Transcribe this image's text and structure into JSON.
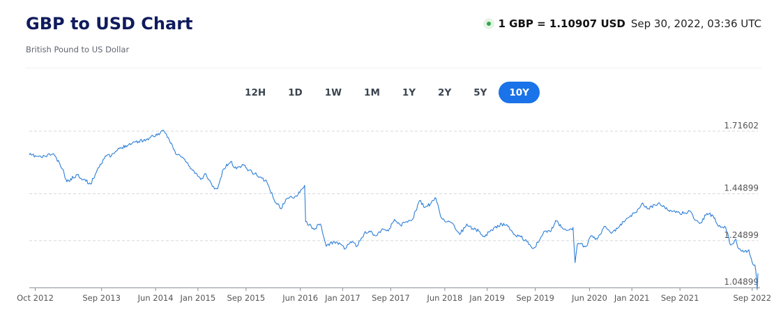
{
  "header": {
    "title": "GBP to USD Chart",
    "subtitle": "British Pound to US Dollar",
    "rate": "1 GBP = 1.10907 USD",
    "timestamp": "Sep 30, 2022, 03:36 UTC"
  },
  "ranges": {
    "items": [
      "12H",
      "1D",
      "1W",
      "1M",
      "1Y",
      "2Y",
      "5Y",
      "10Y"
    ],
    "active": "10Y"
  },
  "colors": {
    "line": "#2c7ed6",
    "active_range": "#1a73e8",
    "title": "#0f1b5c",
    "live": "#2ea84a"
  },
  "chart_data": {
    "type": "line",
    "title": "",
    "xlabel": "",
    "ylabel": "",
    "ylim": [
      1.04899,
      1.71602
    ],
    "yticks": [
      {
        "value": 1.71602,
        "label": "1.71602"
      },
      {
        "value": 1.44899,
        "label": "1.44899"
      },
      {
        "value": 1.24899,
        "label": "1.24899"
      },
      {
        "value": 1.04899,
        "label": "1.04899"
      }
    ],
    "xlim": [
      "2012-09-01",
      "2022-09-30"
    ],
    "xticks": [
      {
        "date": "2012-10-01",
        "label": "Oct 2012"
      },
      {
        "date": "2013-09-01",
        "label": "Sep 2013"
      },
      {
        "date": "2014-06-01",
        "label": "Jun 2014"
      },
      {
        "date": "2015-01-01",
        "label": "Jan 2015"
      },
      {
        "date": "2015-09-01",
        "label": "Sep 2015"
      },
      {
        "date": "2016-06-01",
        "label": "Jun 2016"
      },
      {
        "date": "2017-01-01",
        "label": "Jan 2017"
      },
      {
        "date": "2017-09-01",
        "label": "Sep 2017"
      },
      {
        "date": "2018-06-01",
        "label": "Jun 2018"
      },
      {
        "date": "2019-01-01",
        "label": "Jan 2019"
      },
      {
        "date": "2019-09-01",
        "label": "Sep 2019"
      },
      {
        "date": "2020-06-01",
        "label": "Jun 2020"
      },
      {
        "date": "2021-01-01",
        "label": "Jan 2021"
      },
      {
        "date": "2021-09-01",
        "label": "Sep 2021"
      },
      {
        "date": "2022-09-01",
        "label": "Sep 2022"
      }
    ],
    "grid": "horizontal dashed",
    "series": [
      {
        "points": [
          [
            "2012-09-01",
            1.615
          ],
          [
            "2012-11-01",
            1.605
          ],
          [
            "2013-01-01",
            1.62
          ],
          [
            "2013-02-15",
            1.555
          ],
          [
            "2013-03-10",
            1.5
          ],
          [
            "2013-05-01",
            1.53
          ],
          [
            "2013-07-08",
            1.49
          ],
          [
            "2013-08-15",
            1.56
          ],
          [
            "2013-09-20",
            1.61
          ],
          [
            "2013-10-20",
            1.61
          ],
          [
            "2013-11-20",
            1.635
          ],
          [
            "2014-01-01",
            1.655
          ],
          [
            "2014-02-15",
            1.67
          ],
          [
            "2014-04-15",
            1.68
          ],
          [
            "2014-05-20",
            1.695
          ],
          [
            "2014-07-15",
            1.715
          ],
          [
            "2014-08-20",
            1.665
          ],
          [
            "2014-09-10",
            1.62
          ],
          [
            "2014-10-15",
            1.605
          ],
          [
            "2014-11-20",
            1.565
          ],
          [
            "2015-01-15",
            1.51
          ],
          [
            "2015-02-10",
            1.535
          ],
          [
            "2015-03-15",
            1.48
          ],
          [
            "2015-04-10",
            1.47
          ],
          [
            "2015-05-10",
            1.555
          ],
          [
            "2015-06-15",
            1.585
          ],
          [
            "2015-07-15",
            1.555
          ],
          [
            "2015-08-15",
            1.575
          ],
          [
            "2015-09-15",
            1.55
          ],
          [
            "2015-10-15",
            1.535
          ],
          [
            "2015-11-20",
            1.515
          ],
          [
            "2015-12-15",
            1.5
          ],
          [
            "2016-01-20",
            1.425
          ],
          [
            "2016-02-25",
            1.385
          ],
          [
            "2016-03-20",
            1.425
          ],
          [
            "2016-05-10",
            1.44
          ],
          [
            "2016-06-23",
            1.485
          ],
          [
            "2016-06-28",
            1.33
          ],
          [
            "2016-07-15",
            1.315
          ],
          [
            "2016-08-15",
            1.3
          ],
          [
            "2016-09-10",
            1.32
          ],
          [
            "2016-10-10",
            1.225
          ],
          [
            "2016-11-20",
            1.245
          ],
          [
            "2016-12-20",
            1.235
          ],
          [
            "2017-01-15",
            1.215
          ],
          [
            "2017-02-10",
            1.245
          ],
          [
            "2017-03-15",
            1.225
          ],
          [
            "2017-04-20",
            1.28
          ],
          [
            "2017-05-15",
            1.29
          ],
          [
            "2017-06-20",
            1.27
          ],
          [
            "2017-07-20",
            1.3
          ],
          [
            "2017-08-20",
            1.29
          ],
          [
            "2017-09-20",
            1.34
          ],
          [
            "2017-10-20",
            1.315
          ],
          [
            "2017-11-20",
            1.33
          ],
          [
            "2017-12-20",
            1.34
          ],
          [
            "2018-01-25",
            1.42
          ],
          [
            "2018-02-20",
            1.39
          ],
          [
            "2018-03-20",
            1.405
          ],
          [
            "2018-04-17",
            1.43
          ],
          [
            "2018-05-15",
            1.345
          ],
          [
            "2018-06-15",
            1.33
          ],
          [
            "2018-07-20",
            1.31
          ],
          [
            "2018-08-15",
            1.275
          ],
          [
            "2018-09-20",
            1.32
          ],
          [
            "2018-10-20",
            1.3
          ],
          [
            "2018-11-20",
            1.29
          ],
          [
            "2018-12-20",
            1.265
          ],
          [
            "2019-01-20",
            1.295
          ],
          [
            "2019-03-15",
            1.32
          ],
          [
            "2019-04-15",
            1.31
          ],
          [
            "2019-05-20",
            1.275
          ],
          [
            "2019-06-20",
            1.265
          ],
          [
            "2019-07-20",
            1.245
          ],
          [
            "2019-08-20",
            1.215
          ],
          [
            "2019-09-20",
            1.245
          ],
          [
            "2019-10-20",
            1.29
          ],
          [
            "2019-11-20",
            1.29
          ],
          [
            "2019-12-13",
            1.335
          ],
          [
            "2020-01-15",
            1.305
          ],
          [
            "2020-02-20",
            1.295
          ],
          [
            "2020-03-10",
            1.305
          ],
          [
            "2020-03-20",
            1.155
          ],
          [
            "2020-04-01",
            1.235
          ],
          [
            "2020-05-15",
            1.225
          ],
          [
            "2020-06-10",
            1.27
          ],
          [
            "2020-07-10",
            1.255
          ],
          [
            "2020-08-15",
            1.31
          ],
          [
            "2020-09-20",
            1.28
          ],
          [
            "2020-10-20",
            1.3
          ],
          [
            "2020-11-20",
            1.33
          ],
          [
            "2020-12-20",
            1.35
          ],
          [
            "2021-01-20",
            1.37
          ],
          [
            "2021-02-24",
            1.41
          ],
          [
            "2021-03-20",
            1.385
          ],
          [
            "2021-05-20",
            1.41
          ],
          [
            "2021-06-20",
            1.385
          ],
          [
            "2021-07-20",
            1.375
          ],
          [
            "2021-08-20",
            1.37
          ],
          [
            "2021-09-20",
            1.365
          ],
          [
            "2021-10-20",
            1.375
          ],
          [
            "2021-11-20",
            1.335
          ],
          [
            "2021-12-15",
            1.325
          ],
          [
            "2022-01-15",
            1.365
          ],
          [
            "2022-02-15",
            1.355
          ],
          [
            "2022-03-10",
            1.315
          ],
          [
            "2022-04-20",
            1.305
          ],
          [
            "2022-05-15",
            1.23
          ],
          [
            "2022-06-10",
            1.255
          ],
          [
            "2022-06-20",
            1.22
          ],
          [
            "2022-07-20",
            1.2
          ],
          [
            "2022-08-15",
            1.21
          ],
          [
            "2022-09-01",
            1.155
          ],
          [
            "2022-09-15",
            1.145
          ],
          [
            "2022-09-23",
            1.085
          ],
          [
            "2022-09-26",
            1.04
          ],
          [
            "2022-09-30",
            1.109
          ]
        ]
      }
    ]
  }
}
